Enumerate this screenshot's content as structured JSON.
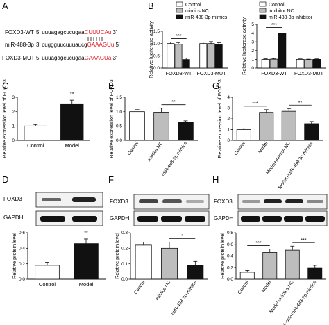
{
  "panels": {
    "A": "A",
    "B": "B",
    "C": "C",
    "D": "D",
    "E": "E",
    "F": "F",
    "G": "G",
    "H": "H"
  },
  "colors": {
    "red": "#e0171f",
    "black": "#111111",
    "gray": "#bdbdbd",
    "white": "#ffffff"
  },
  "panel_a": {
    "rows": [
      {
        "label": "FOXD3-WT",
        "prefix": "5' uuuagagcucugaa",
        "colored": "CUUUCAu",
        "suffix": " 3'"
      },
      {
        "label": "miR-488-3p",
        "prefix": "3' cuggguucuuuaucg",
        "colored": "GAAAGUu",
        "suffix": " 5'"
      },
      {
        "label": "FOXD3-MUT",
        "prefix": "5' uuuagagcucugaa",
        "colored": "GAAAGUa",
        "suffix": " 3'"
      }
    ]
  },
  "blots": {
    "D": {
      "labels": [
        "FOXD3",
        "GAPDH"
      ]
    },
    "F": {
      "labels": [
        "FOXD3",
        "GAPDH"
      ]
    },
    "H": {
      "labels": [
        "FOXD3",
        "GAPDH"
      ]
    }
  },
  "chart_data": [
    {
      "id": "B-left",
      "type": "bar",
      "categories": [
        "FOXD3-WT",
        "FOXD3-MUT"
      ],
      "series": [
        {
          "name": "Control",
          "values": [
            1.0,
            1.0
          ],
          "errors": [
            0.06,
            0.06
          ]
        },
        {
          "name": "mimics NC",
          "values": [
            0.97,
            1.0
          ],
          "errors": [
            0.07,
            0.08
          ]
        },
        {
          "name": "miR-488-3p mimics",
          "values": [
            0.35,
            0.95
          ],
          "errors": [
            0.06,
            0.08
          ]
        }
      ],
      "ylabel": "Relative luciferase activity",
      "ylim": [
        0,
        1.5
      ],
      "yticks": [
        "0.0",
        "0.5",
        "1.0",
        "1.5"
      ],
      "annotations": [
        {
          "text": "***",
          "category": 0
        }
      ]
    },
    {
      "id": "B-right",
      "type": "bar",
      "categories": [
        "FOXD3-WT",
        "FOXD3-MUT"
      ],
      "series": [
        {
          "name": "Control",
          "values": [
            1.0,
            1.0
          ],
          "errors": [
            0.06,
            0.05
          ]
        },
        {
          "name": "inhibitor NC",
          "values": [
            1.02,
            0.97
          ],
          "errors": [
            0.08,
            0.05
          ]
        },
        {
          "name": "miR-488-3p inhibitor",
          "values": [
            4.0,
            1.0
          ],
          "errors": [
            0.25,
            0.05
          ]
        }
      ],
      "ylabel": "Relative luciferase activity",
      "ylim": [
        0,
        5
      ],
      "yticks": [
        "0",
        "1",
        "2",
        "3",
        "4",
        "5"
      ],
      "annotations": [
        {
          "text": "***",
          "category": 0
        }
      ]
    },
    {
      "id": "C",
      "type": "bar",
      "categories": [
        "Control",
        "Model"
      ],
      "values": [
        1.0,
        2.5
      ],
      "errors": [
        0.1,
        0.3
      ],
      "ylabel": "Relative expression level of FOXD3",
      "ylim": [
        0,
        3
      ],
      "yticks": [
        "0",
        "1",
        "2",
        "3"
      ],
      "annotations": [
        {
          "text": "**",
          "from": 1,
          "to": 1
        }
      ]
    },
    {
      "id": "E",
      "type": "bar",
      "categories": [
        "Control",
        "mimics NC",
        "miR-488-3p mimics"
      ],
      "values": [
        1.0,
        0.98,
        0.62
      ],
      "errors": [
        0.07,
        0.14,
        0.06
      ],
      "ylabel": "Relative expression level of FOXD3",
      "ylim": [
        0,
        1.5
      ],
      "yticks": [
        "0.0",
        "0.5",
        "1.0",
        "1.5"
      ],
      "annotations": [
        {
          "text": "**",
          "from": 1,
          "to": 2
        }
      ]
    },
    {
      "id": "G",
      "type": "bar",
      "categories": [
        "Control",
        "Model",
        "Model+mimics NC",
        "Model+miR-488-3p mimics"
      ],
      "values": [
        1.0,
        2.6,
        2.7,
        1.55
      ],
      "errors": [
        0.12,
        0.25,
        0.25,
        0.2
      ],
      "ylabel": "Relative expression level of FOXD3",
      "ylim": [
        0,
        4
      ],
      "yticks": [
        "0",
        "1",
        "2",
        "3",
        "4"
      ],
      "annotations": [
        {
          "text": "***",
          "from": 0,
          "to": 1
        },
        {
          "text": "**",
          "from": 2,
          "to": 3
        }
      ]
    },
    {
      "id": "D",
      "type": "bar",
      "categories": [
        "Control",
        "Model"
      ],
      "values": [
        0.18,
        0.46
      ],
      "errors": [
        0.04,
        0.06
      ],
      "ylabel": "Relative protein level",
      "ylim": [
        0,
        0.6
      ],
      "yticks": [
        "0.0",
        "0.2",
        "0.4",
        "0.6"
      ],
      "annotations": [
        {
          "text": "**",
          "from": 1,
          "to": 1
        }
      ]
    },
    {
      "id": "F",
      "type": "bar",
      "categories": [
        "Control",
        "mimics NC",
        "miR-488-3p mimics"
      ],
      "values": [
        0.22,
        0.2,
        0.09
      ],
      "errors": [
        0.02,
        0.04,
        0.025
      ],
      "ylabel": "Relative protein level",
      "ylim": [
        0,
        0.3
      ],
      "yticks": [
        "0.0",
        "0.1",
        "0.2",
        "0.3"
      ],
      "annotations": [
        {
          "text": "*",
          "from": 1,
          "to": 2
        }
      ]
    },
    {
      "id": "H",
      "type": "bar",
      "categories": [
        "Control",
        "Model",
        "Model+mimics NC",
        "Model+miR-488-3p mimics"
      ],
      "values": [
        0.12,
        0.46,
        0.5,
        0.19
      ],
      "errors": [
        0.03,
        0.06,
        0.07,
        0.05
      ],
      "ylabel": "Relative protein level",
      "ylim": [
        0,
        0.8
      ],
      "yticks": [
        "0.0",
        "0.2",
        "0.4",
        "0.6",
        "0.8"
      ],
      "annotations": [
        {
          "text": "***",
          "from": 0,
          "to": 1
        },
        {
          "text": "***",
          "from": 2,
          "to": 3
        }
      ]
    }
  ]
}
